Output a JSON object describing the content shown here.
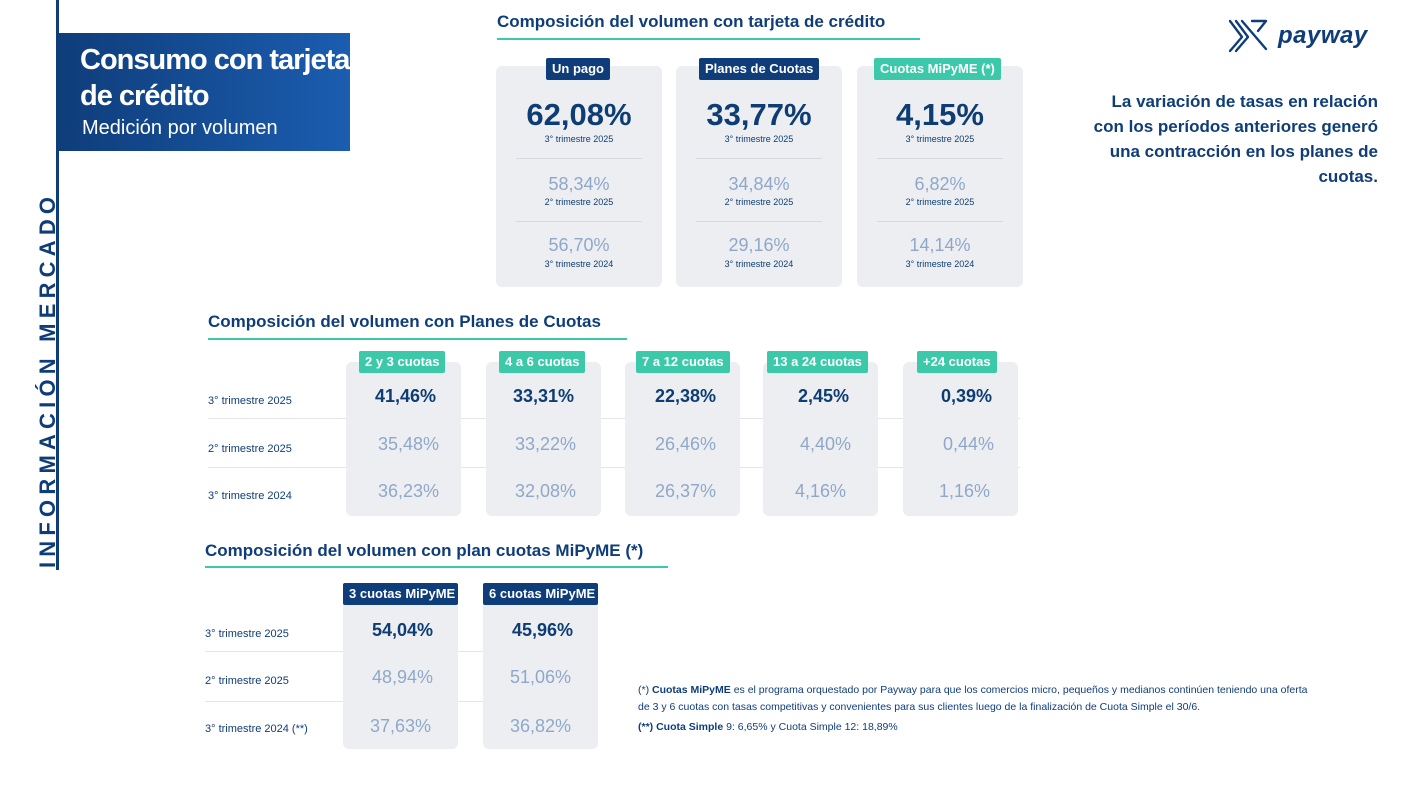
{
  "side_label": "INFORMACIÓN MERCADO",
  "header": {
    "title": "Consumo con tarjeta de crédito",
    "subtitle": "Medición por volumen"
  },
  "brand": {
    "name": "payway",
    "icon": "payway-logo-icon"
  },
  "note": "La variación de tasas en relación con los períodos anteriores generó una contracción en los planes de cuotas.",
  "section1": {
    "title": "Composición del volumen con tarjeta de crédito",
    "cards": [
      {
        "label": "Un pago",
        "main": "62,08%",
        "main_period": "3° trimestre 2025",
        "v2": "58,34%",
        "p2": "2° trimestre 2025",
        "v3": "56,70%",
        "p3": "3° trimestre 2024"
      },
      {
        "label": "Planes de Cuotas",
        "main": "33,77%",
        "main_period": "3° trimestre 2025",
        "v2": "34,84%",
        "p2": "2° trimestre 2025",
        "v3": "29,16%",
        "p3": "3° trimestre 2024"
      },
      {
        "label": "Cuotas MiPyME (*)",
        "main": "4,15%",
        "main_period": "3° trimestre 2025",
        "v2": "6,82%",
        "p2": "2° trimestre 2025",
        "v3": "14,14%",
        "p3": "3° trimestre 2024"
      }
    ]
  },
  "section2": {
    "title": "Composición del volumen con Planes de Cuotas",
    "rows": [
      "3° trimestre 2025",
      "2° trimestre 2025",
      "3° trimestre 2024"
    ],
    "columns": [
      {
        "label": "2 y 3 cuotas",
        "values": [
          "41,46%",
          "35,48%",
          "36,23%"
        ]
      },
      {
        "label": "4 a 6 cuotas",
        "values": [
          "33,31%",
          "33,22%",
          "32,08%"
        ]
      },
      {
        "label": "7 a 12 cuotas",
        "values": [
          "22,38%",
          "26,46%",
          "26,37%"
        ]
      },
      {
        "label": "13 a 24 cuotas",
        "values": [
          "2,45%",
          "4,40%",
          "4,16%"
        ]
      },
      {
        "label": "+24 cuotas",
        "values": [
          "0,39%",
          "0,44%",
          "1,16%"
        ]
      }
    ]
  },
  "section3": {
    "title": "Composición del volumen con plan cuotas MiPyME (*)",
    "rows": [
      "3° trimestre 2025",
      "2° trimestre 2025",
      "3° trimestre 2024 (**)"
    ],
    "columns": [
      {
        "label": "3 cuotas MiPyME",
        "values": [
          "54,04%",
          "48,94%",
          "37,63%"
        ]
      },
      {
        "label": "6 cuotas MiPyME",
        "values": [
          "45,96%",
          "51,06%",
          "36,82%"
        ]
      }
    ]
  },
  "footnotes": {
    "f1_mark": "(*)",
    "f1_bold": "Cuotas MiPyME",
    "f1_line1": "es el programa orquestado por Payway para que los comercios micro, pequeños y medianos continúen teniendo una oferta",
    "f1_line2": "de 3 y 6 cuotas con tasas competitivas y convenientes para sus clientes luego de la finalización de Cuota Simple el 30/6.",
    "f2_mark": "(**)",
    "f2_bold": "Cuota Simple",
    "f2_text": "9: 6,65% y Cuota Simple 12: 18,89%"
  },
  "colors": {
    "navy": "#0f3d7a",
    "accent": "#3cc9a9",
    "card_bg": "#edeef2",
    "muted": "#8fa8c9"
  }
}
